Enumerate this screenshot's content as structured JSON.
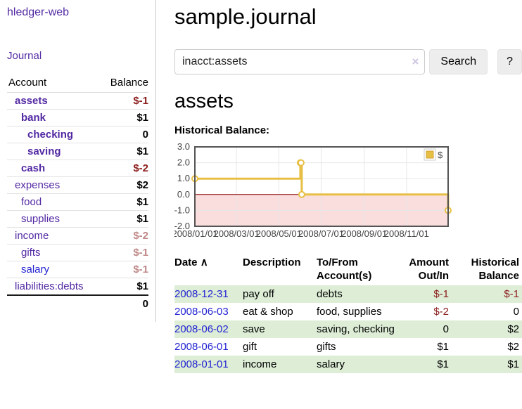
{
  "app": {
    "brand": "hledger-web",
    "nav_journal": "Journal"
  },
  "sidebar": {
    "columns": {
      "account": "Account",
      "balance": "Balance"
    },
    "accounts": [
      {
        "name": "assets",
        "depth": 1,
        "bold": true,
        "balance": "$-1",
        "balance_color": "neg-strong"
      },
      {
        "name": "bank",
        "depth": 2,
        "bold": true,
        "balance": "$1"
      },
      {
        "name": "checking",
        "depth": 3,
        "bold": true,
        "balance": "0"
      },
      {
        "name": "saving",
        "depth": 3,
        "bold": true,
        "balance": "$1"
      },
      {
        "name": "cash",
        "depth": 2,
        "bold": true,
        "balance": "$-2",
        "balance_color": "neg-strong"
      },
      {
        "name": "expenses",
        "depth": 1,
        "bold": false,
        "balance": "$2"
      },
      {
        "name": "food",
        "depth": 2,
        "bold": false,
        "balance": "$1"
      },
      {
        "name": "supplies",
        "depth": 2,
        "bold": false,
        "balance": "$1"
      },
      {
        "name": "income",
        "depth": 1,
        "bold": false,
        "balance": "$-2",
        "balance_color": "neg-soft"
      },
      {
        "name": "gifts",
        "depth": 2,
        "bold": false,
        "balance": "$-1",
        "balance_color": "neg-soft"
      },
      {
        "name": "salary",
        "depth": 2,
        "bold": false,
        "balance": "$-1",
        "balance_color": "neg-soft",
        "link_color": "blue"
      },
      {
        "name": "liabilities:debts",
        "depth": 1,
        "bold": false,
        "balance": "$1"
      }
    ],
    "total": "0"
  },
  "header": {
    "title": "sample.journal"
  },
  "search": {
    "value": "inacct:assets",
    "clear_icon": "×",
    "button": "Search",
    "help_button": "?"
  },
  "account_page": {
    "heading": "assets",
    "chart_label": "Historical Balance:"
  },
  "chart_data": {
    "type": "line",
    "style": "steps",
    "title": "Historical Balance",
    "series": [
      {
        "name": "$",
        "color": "#e8bf45",
        "points": [
          [
            "2008-01-01",
            1
          ],
          [
            "2008-06-01",
            2
          ],
          [
            "2008-06-02",
            2
          ],
          [
            "2008-06-03",
            0
          ],
          [
            "2008-12-31",
            -1
          ]
        ]
      }
    ],
    "x_range": [
      "2008-01-01",
      "2008-12-31"
    ],
    "ylim": [
      -2,
      3
    ],
    "x_tick_labels": [
      "2008/01/01",
      "2008/03/01",
      "2008/05/01",
      "2008/07/01",
      "2008/09/01",
      "2008/11/01"
    ],
    "y_tick_labels": [
      "3.0",
      "2.0",
      "1.0",
      "0.0",
      "-1.0",
      "-2.0"
    ],
    "grid": true,
    "legend_position": "top-right",
    "zero_line_color": "#8b0000",
    "negative_region_color": "#fadddd",
    "plot_border_color": "#545454",
    "grid_color": "#e7e7e7",
    "tick_label_color": "#444444"
  },
  "register": {
    "header": {
      "date": {
        "label": "Date",
        "sort_indicator": "∧"
      },
      "description": {
        "label": "Description"
      },
      "tofrom": {
        "line1": "To/From",
        "line2": "Account(s)"
      },
      "amount": {
        "line1": "Amount",
        "line2": "Out/In"
      },
      "balance": {
        "line1": "Historical",
        "line2": "Balance"
      }
    },
    "rows": [
      {
        "date": "2008-12-31",
        "description": "pay off",
        "accounts": "debts",
        "amount": "$-1",
        "amount_negative": true,
        "balance": "$-1",
        "balance_negative": true,
        "highlight": true
      },
      {
        "date": "2008-06-03",
        "description": "eat & shop",
        "accounts": "food, supplies",
        "amount": "$-2",
        "amount_negative": true,
        "balance": "0",
        "balance_negative": false,
        "highlight": false
      },
      {
        "date": "2008-06-02",
        "description": "save",
        "accounts": "saving, checking",
        "amount": "0",
        "amount_negative": false,
        "balance": "$2",
        "balance_negative": false,
        "highlight": true
      },
      {
        "date": "2008-06-01",
        "description": "gift",
        "accounts": "gifts",
        "amount": "$1",
        "amount_negative": false,
        "balance": "$2",
        "balance_negative": false,
        "highlight": false
      },
      {
        "date": "2008-01-01",
        "description": "income",
        "accounts": "salary",
        "amount": "$1",
        "amount_negative": false,
        "balance": "$1",
        "balance_negative": false,
        "highlight": true
      }
    ]
  }
}
